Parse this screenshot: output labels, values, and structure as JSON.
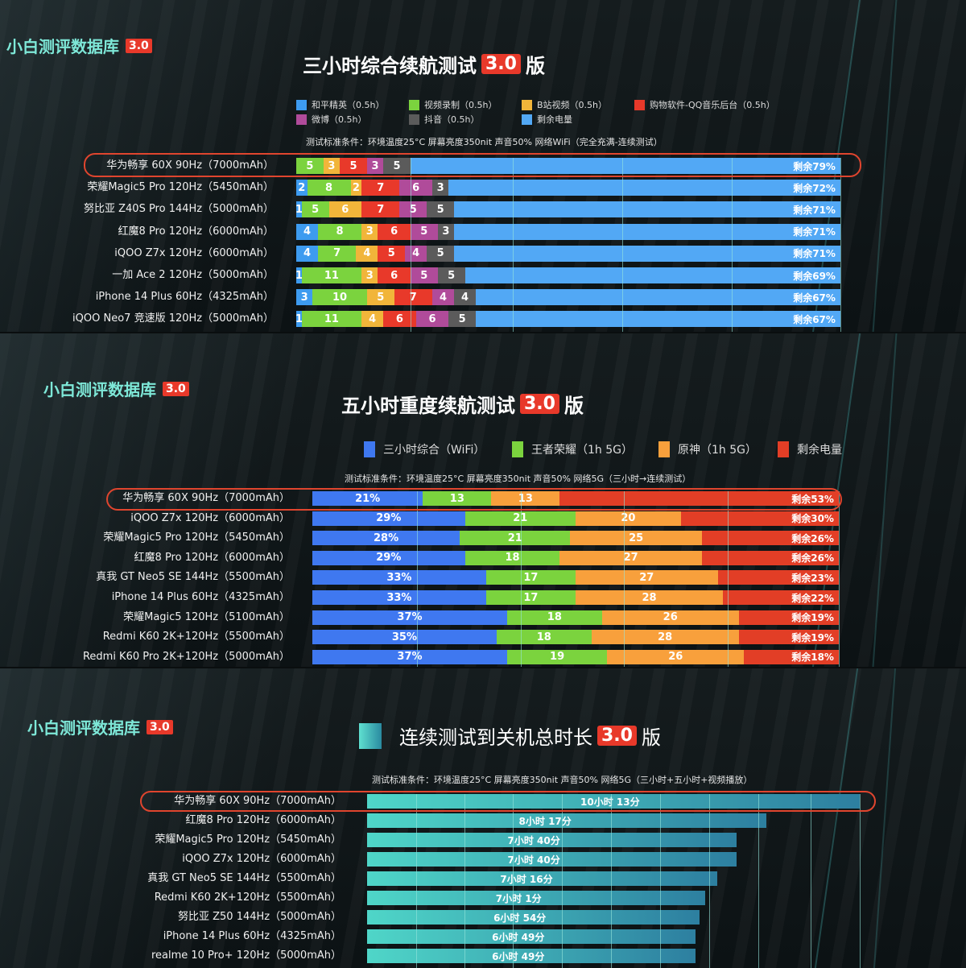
{
  "brand": {
    "name": "小白测评数据库",
    "version": "3.0"
  },
  "chart_data": [
    {
      "type": "bar",
      "stacked": true,
      "orientation": "horizontal",
      "title": "三小时综合续航测试",
      "title_badge": "3.0",
      "title_suffix": "版",
      "conditions": "测试标准条件：环境温度25°C 屏幕亮度350nit 声音50% 网络WiFi（完全充满-连续测试）",
      "legend": [
        {
          "name": "和平精英（0.5h）",
          "color": "#3d9bf0"
        },
        {
          "name": "视频录制（0.5h）",
          "color": "#7bd33e"
        },
        {
          "name": "B站视频（0.5h）",
          "color": "#f1b53a"
        },
        {
          "name": "购物软件-QQ音乐后台（0.5h）",
          "color": "#e8392a"
        },
        {
          "name": "微博（0.5h）",
          "color": "#b04b9a"
        },
        {
          "name": "抖音（0.5h）",
          "color": "#5b5b5b"
        },
        {
          "name": "剩余电量",
          "color": "#52a8f5"
        }
      ],
      "categories": [
        "华为畅享 60X 90Hz（7000mAh）",
        "荣耀Magic5 Pro 120Hz（5450mAh）",
        "努比亚 Z40S Pro 144Hz（5000mAh）",
        "红魔8 Pro 120Hz（6000mAh）",
        "iQOO Z7x 120Hz（6000mAh）",
        "一加 Ace 2 120Hz（5000mAh）",
        "iPhone 14 Plus 60Hz（4325mAh）",
        "iQOO Neo7 竞速版 120Hz（5000mAh）"
      ],
      "series": [
        {
          "name": "和平精英（0.5h）",
          "values": [
            0,
            2,
            1,
            4,
            4,
            1,
            3,
            1
          ]
        },
        {
          "name": "视频录制（0.5h）",
          "values": [
            5,
            8,
            5,
            8,
            7,
            11,
            10,
            11
          ]
        },
        {
          "name": "B站视频（0.5h）",
          "values": [
            3,
            2,
            6,
            3,
            4,
            3,
            5,
            4
          ]
        },
        {
          "name": "购物软件-QQ音乐后台（0.5h）",
          "values": [
            5,
            7,
            7,
            6,
            5,
            6,
            7,
            6
          ]
        },
        {
          "name": "微博（0.5h）",
          "values": [
            3,
            6,
            5,
            5,
            4,
            5,
            4,
            6
          ]
        },
        {
          "name": "抖音（0.5h）",
          "values": [
            5,
            3,
            5,
            3,
            5,
            5,
            4,
            5
          ]
        },
        {
          "name": "剩余电量",
          "values": [
            79,
            72,
            71,
            71,
            71,
            69,
            67,
            67
          ]
        }
      ],
      "remaining_labels": [
        "剩余79%",
        "剩余72%",
        "剩余71%",
        "剩余71%",
        "剩余71%",
        "剩余69%",
        "剩余67%",
        "剩余67%"
      ],
      "highlighted": "华为畅享 60X 90Hz（7000mAh）",
      "xlim": [
        0,
        100
      ]
    },
    {
      "type": "bar",
      "stacked": true,
      "orientation": "horizontal",
      "title": "五小时重度续航测试",
      "title_badge": "3.0",
      "title_suffix": "版",
      "conditions": "测试标准条件：环境温度25°C 屏幕亮度350nit 声音50% 网络5G（三小时→连续测试）",
      "legend": [
        {
          "name": "三小时综合（WiFi）",
          "color": "#3f78f0"
        },
        {
          "name": "王者荣耀（1h 5G）",
          "color": "#7bd33e"
        },
        {
          "name": "原神（1h 5G）",
          "color": "#f8a03c"
        },
        {
          "name": "剩余电量",
          "color": "#e23e26"
        }
      ],
      "categories": [
        "华为畅享 60X 90Hz（7000mAh）",
        "iQOO Z7x 120Hz（6000mAh）",
        "荣耀Magic5 Pro 120Hz（5450mAh）",
        "红魔8 Pro 120Hz（6000mAh）",
        "真我 GT Neo5 SE 144Hz（5500mAh）",
        "iPhone 14 Plus 60Hz（4325mAh）",
        "荣耀Magic5 120Hz（5100mAh）",
        "Redmi K60 2K+120Hz（5500mAh）",
        "Redmi K60 Pro 2K+120Hz（5000mAh）"
      ],
      "series": [
        {
          "name": "三小时综合（WiFi）",
          "values": [
            21,
            29,
            28,
            29,
            33,
            33,
            37,
            35,
            37
          ],
          "labels": [
            "21%",
            "29%",
            "28%",
            "29%",
            "33%",
            "33%",
            "37%",
            "35%",
            "37%"
          ]
        },
        {
          "name": "王者荣耀（1h 5G）",
          "values": [
            13,
            21,
            21,
            18,
            17,
            17,
            18,
            18,
            19
          ]
        },
        {
          "name": "原神（1h 5G）",
          "values": [
            13,
            20,
            25,
            27,
            27,
            28,
            26,
            28,
            26
          ]
        },
        {
          "name": "剩余电量",
          "values": [
            53,
            30,
            26,
            26,
            23,
            22,
            19,
            19,
            18
          ]
        }
      ],
      "remaining_labels": [
        "剩余53%",
        "剩余30%",
        "剩余26%",
        "剩余26%",
        "剩余23%",
        "剩余22%",
        "剩余19%",
        "剩余19%",
        "剩余18%"
      ],
      "highlighted": "华为畅享 60X 90Hz（7000mAh）",
      "xlim": [
        0,
        100
      ]
    },
    {
      "type": "bar",
      "orientation": "horizontal",
      "title": "连续测试到关机总时长",
      "title_badge": "3.0",
      "title_suffix": "版",
      "conditions": "测试标准条件：环境温度25°C 屏幕亮度350nit 声音50% 网络5G（三小时+五小时+视频播放）",
      "color": "#4fd6c8",
      "color_end": "#2d7fa0",
      "categories": [
        "华为畅享 60X 90Hz（7000mAh）",
        "红魔8 Pro 120Hz（6000mAh）",
        "荣耀Magic5 Pro 120Hz（5450mAh）",
        "iQOO Z7x 120Hz（6000mAh）",
        "真我 GT Neo5 SE 144Hz（5500mAh）",
        "Redmi K60 2K+120Hz（5500mAh）",
        "努比亚 Z50 144Hz（5000mAh）",
        "iPhone 14 Plus 60Hz（4325mAh）",
        "realme 10 Pro+ 120Hz（5000mAh）"
      ],
      "values_minutes": [
        613,
        497,
        460,
        460,
        436,
        421,
        414,
        409,
        409
      ],
      "labels": [
        "10小时 13分",
        "8小时 17分",
        "7小时 40分",
        "7小时 40分",
        "7小时 16分",
        "7小时 1分",
        "6小时 54分",
        "6小时 49分",
        "6小时 49分"
      ],
      "highlighted": "华为畅享 60X 90Hz（7000mAh）",
      "xlim": [
        0,
        615
      ]
    }
  ]
}
